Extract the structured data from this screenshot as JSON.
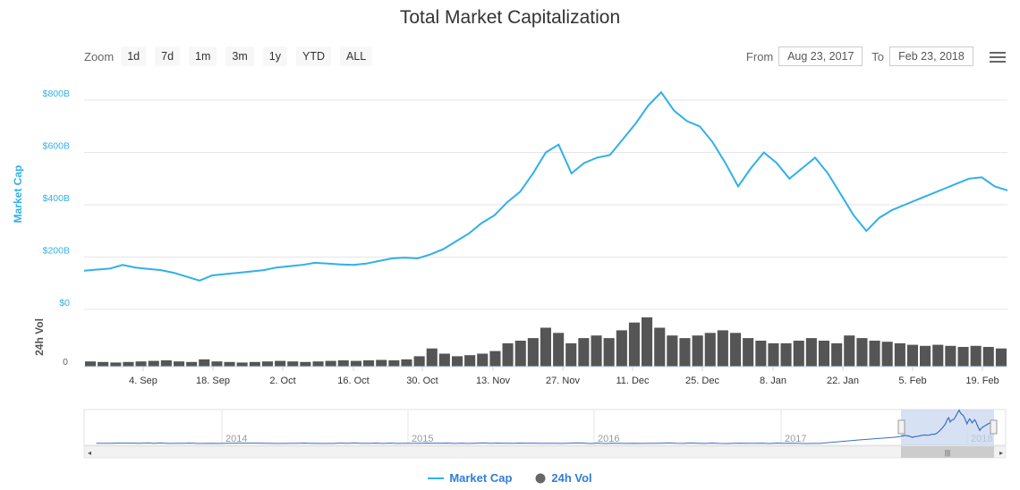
{
  "title": "Total Market Capitalization",
  "zoom": {
    "label": "Zoom",
    "buttons": [
      "1d",
      "7d",
      "1m",
      "3m",
      "1y",
      "YTD",
      "ALL"
    ]
  },
  "range": {
    "from_label": "From",
    "from_value": "Aug 23, 2017",
    "to_label": "To",
    "to_value": "Feb 23, 2018"
  },
  "legend": {
    "market_cap": "Market Cap",
    "volume": "24h Vol"
  },
  "colors": {
    "line": "#30b0e8",
    "volume": "#555555",
    "navigator_fill": "#c6d4f0",
    "navigator_line": "#3a6ec0"
  },
  "chart_data": {
    "type": "line",
    "yaxis_main": {
      "label": "Market Cap",
      "ticks": [
        "$0",
        "$200B",
        "$400B",
        "$600B",
        "$800B"
      ],
      "range": [
        0,
        800
      ]
    },
    "yaxis_volume": {
      "label": "24h Vol",
      "ticks": [
        "0"
      ]
    },
    "xaxis": {
      "ticks": [
        "4. Sep",
        "18. Sep",
        "2. Oct",
        "16. Oct",
        "30. Oct",
        "13. Nov",
        "27. Nov",
        "11. Dec",
        "25. Dec",
        "8. Jan",
        "22. Jan",
        "5. Feb",
        "19. Feb"
      ]
    },
    "navigator_ticks": [
      "2014",
      "2015",
      "2016",
      "2017",
      "2018"
    ],
    "series": [
      {
        "name": "Market Cap",
        "unit": "B USD",
        "values": [
          148,
          152,
          156,
          170,
          160,
          155,
          150,
          140,
          125,
          110,
          130,
          135,
          140,
          145,
          150,
          160,
          165,
          170,
          178,
          175,
          172,
          170,
          175,
          185,
          195,
          198,
          195,
          210,
          230,
          260,
          290,
          330,
          360,
          410,
          450,
          520,
          600,
          630,
          520,
          560,
          580,
          590,
          650,
          710,
          780,
          830,
          760,
          720,
          700,
          640,
          560,
          470,
          540,
          600,
          560,
          500,
          540,
          580,
          520,
          440,
          360,
          300,
          350,
          380,
          400,
          420,
          440,
          460,
          480,
          500,
          505,
          470,
          455
        ]
      },
      {
        "name": "24h Vol",
        "unit": "relative",
        "values": [
          0.1,
          0.09,
          0.08,
          0.09,
          0.1,
          0.11,
          0.12,
          0.1,
          0.09,
          0.14,
          0.1,
          0.09,
          0.08,
          0.09,
          0.1,
          0.11,
          0.1,
          0.09,
          0.1,
          0.11,
          0.12,
          0.11,
          0.12,
          0.13,
          0.12,
          0.14,
          0.2,
          0.35,
          0.25,
          0.2,
          0.22,
          0.25,
          0.3,
          0.45,
          0.5,
          0.55,
          0.75,
          0.65,
          0.45,
          0.55,
          0.6,
          0.55,
          0.7,
          0.85,
          0.95,
          0.75,
          0.6,
          0.55,
          0.6,
          0.65,
          0.7,
          0.65,
          0.55,
          0.5,
          0.45,
          0.45,
          0.5,
          0.55,
          0.5,
          0.45,
          0.6,
          0.55,
          0.5,
          0.48,
          0.45,
          0.42,
          0.4,
          0.42,
          0.4,
          0.38,
          0.4,
          0.38,
          0.35
        ]
      }
    ]
  }
}
